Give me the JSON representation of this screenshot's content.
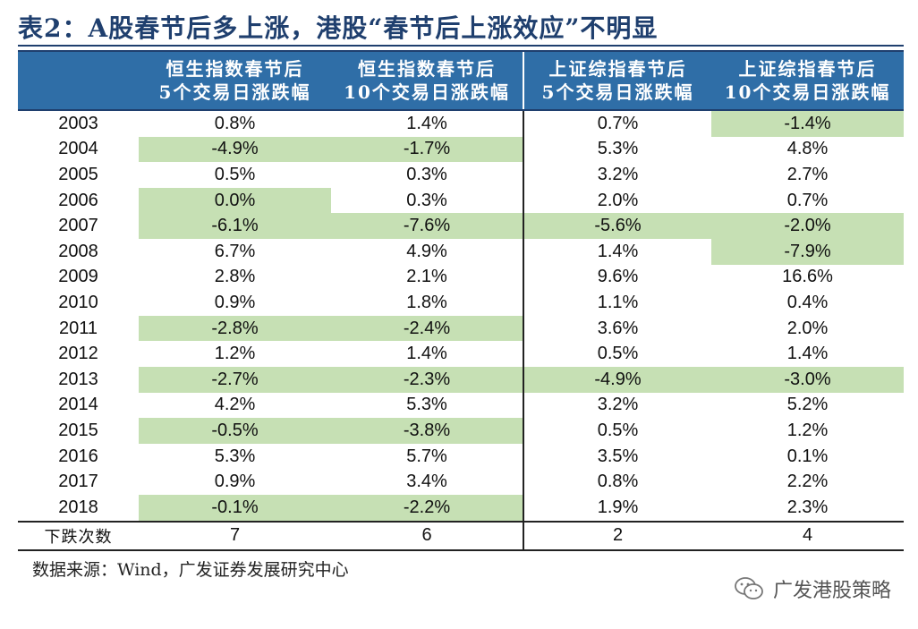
{
  "title": "表2：A股春节后多上涨，港股“春节后上涨效应”不明显",
  "headers": [
    {
      "l1": "",
      "l2": ""
    },
    {
      "l1": "恒生指数春节后",
      "l2": "5个交易日涨跌幅"
    },
    {
      "l1": "恒生指数春节后",
      "l2": "10个交易日涨跌幅"
    },
    {
      "l1": "上证综指春节后",
      "l2": "5个交易日涨跌幅"
    },
    {
      "l1": "上证综指春节后",
      "l2": "10个交易日涨跌幅"
    }
  ],
  "rows": [
    {
      "year": "2003",
      "v": [
        "0.8%",
        "1.4%",
        "0.7%",
        "-1.4%"
      ],
      "hl": [
        false,
        false,
        false,
        true
      ]
    },
    {
      "year": "2004",
      "v": [
        "-4.9%",
        "-1.7%",
        "5.3%",
        "4.8%"
      ],
      "hl": [
        true,
        true,
        false,
        false
      ]
    },
    {
      "year": "2005",
      "v": [
        "0.5%",
        "0.3%",
        "3.2%",
        "2.7%"
      ],
      "hl": [
        false,
        false,
        false,
        false
      ]
    },
    {
      "year": "2006",
      "v": [
        "0.0%",
        "0.3%",
        "2.0%",
        "0.7%"
      ],
      "hl": [
        true,
        false,
        false,
        false
      ]
    },
    {
      "year": "2007",
      "v": [
        "-6.1%",
        "-7.6%",
        "-5.6%",
        "-2.0%"
      ],
      "hl": [
        true,
        true,
        true,
        true
      ]
    },
    {
      "year": "2008",
      "v": [
        "6.7%",
        "4.9%",
        "1.4%",
        "-7.9%"
      ],
      "hl": [
        false,
        false,
        false,
        true
      ]
    },
    {
      "year": "2009",
      "v": [
        "2.8%",
        "2.1%",
        "9.6%",
        "16.6%"
      ],
      "hl": [
        false,
        false,
        false,
        false
      ]
    },
    {
      "year": "2010",
      "v": [
        "0.9%",
        "1.8%",
        "1.1%",
        "0.4%"
      ],
      "hl": [
        false,
        false,
        false,
        false
      ]
    },
    {
      "year": "2011",
      "v": [
        "-2.8%",
        "-2.4%",
        "3.6%",
        "2.0%"
      ],
      "hl": [
        true,
        true,
        false,
        false
      ]
    },
    {
      "year": "2012",
      "v": [
        "1.2%",
        "1.4%",
        "0.5%",
        "1.4%"
      ],
      "hl": [
        false,
        false,
        false,
        false
      ]
    },
    {
      "year": "2013",
      "v": [
        "-2.7%",
        "-2.3%",
        "-4.9%",
        "-3.0%"
      ],
      "hl": [
        true,
        true,
        true,
        true
      ]
    },
    {
      "year": "2014",
      "v": [
        "4.2%",
        "5.3%",
        "3.2%",
        "5.2%"
      ],
      "hl": [
        false,
        false,
        false,
        false
      ]
    },
    {
      "year": "2015",
      "v": [
        "-0.5%",
        "-3.8%",
        "0.5%",
        "1.2%"
      ],
      "hl": [
        true,
        true,
        false,
        false
      ]
    },
    {
      "year": "2016",
      "v": [
        "5.3%",
        "5.7%",
        "3.5%",
        "0.1%"
      ],
      "hl": [
        false,
        false,
        false,
        false
      ]
    },
    {
      "year": "2017",
      "v": [
        "0.9%",
        "3.4%",
        "0.8%",
        "2.2%"
      ],
      "hl": [
        false,
        false,
        false,
        false
      ]
    },
    {
      "year": "2018",
      "v": [
        "-0.1%",
        "-2.2%",
        "1.9%",
        "2.3%"
      ],
      "hl": [
        true,
        true,
        false,
        false
      ]
    }
  ],
  "total": {
    "label": "下跌次数",
    "v": [
      "7",
      "6",
      "2",
      "4"
    ]
  },
  "source": "数据来源：Wind，广发证券发展研究中心",
  "watermark": {
    "text": "广发港股策略",
    "icon": "wechat-icon"
  },
  "colors": {
    "header_bg": "#2f6ea7",
    "highlight": "#c6e0b4",
    "title": "#1f3f6e"
  }
}
